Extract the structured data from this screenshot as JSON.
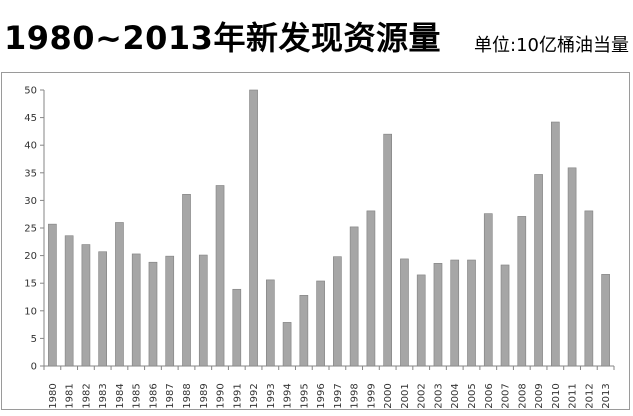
{
  "title": "1980~2013年新发现资源量",
  "unit_note": "单位:10亿桶油当量",
  "colors": {
    "bar": "#a6a6a6",
    "bar_edge": "#7f7f7f",
    "axis": "#868686",
    "frame": "#9a9a9a"
  },
  "chart_data": {
    "type": "bar",
    "title": "1980~2013年新发现资源量",
    "xlabel": "",
    "ylabel": "",
    "unit": "单位:10亿桶油当量",
    "ylim": [
      0,
      50
    ],
    "yticks": [
      0,
      5,
      10,
      15,
      20,
      25,
      30,
      35,
      40,
      45,
      50
    ],
    "grid": false,
    "legend": "none",
    "categories": [
      "1980",
      "1981",
      "1982",
      "1983",
      "1984",
      "1985",
      "1986",
      "1987",
      "1988",
      "1989",
      "1990",
      "1991",
      "1992",
      "1993",
      "1994",
      "1995",
      "1996",
      "1997",
      "1998",
      "1999",
      "2000",
      "2001",
      "2002",
      "2003",
      "2004",
      "2005",
      "2006",
      "2007",
      "2008",
      "2009",
      "2010",
      "2011",
      "2012",
      "2013"
    ],
    "values": [
      25.7,
      23.6,
      22.0,
      20.7,
      26.0,
      20.3,
      18.8,
      19.9,
      31.1,
      20.1,
      32.7,
      13.9,
      50.0,
      15.6,
      7.9,
      12.8,
      15.4,
      19.8,
      25.2,
      28.1,
      42.0,
      19.4,
      16.5,
      18.6,
      19.2,
      19.2,
      27.6,
      18.3,
      27.1,
      34.7,
      44.2,
      35.9,
      28.1,
      16.6
    ]
  }
}
